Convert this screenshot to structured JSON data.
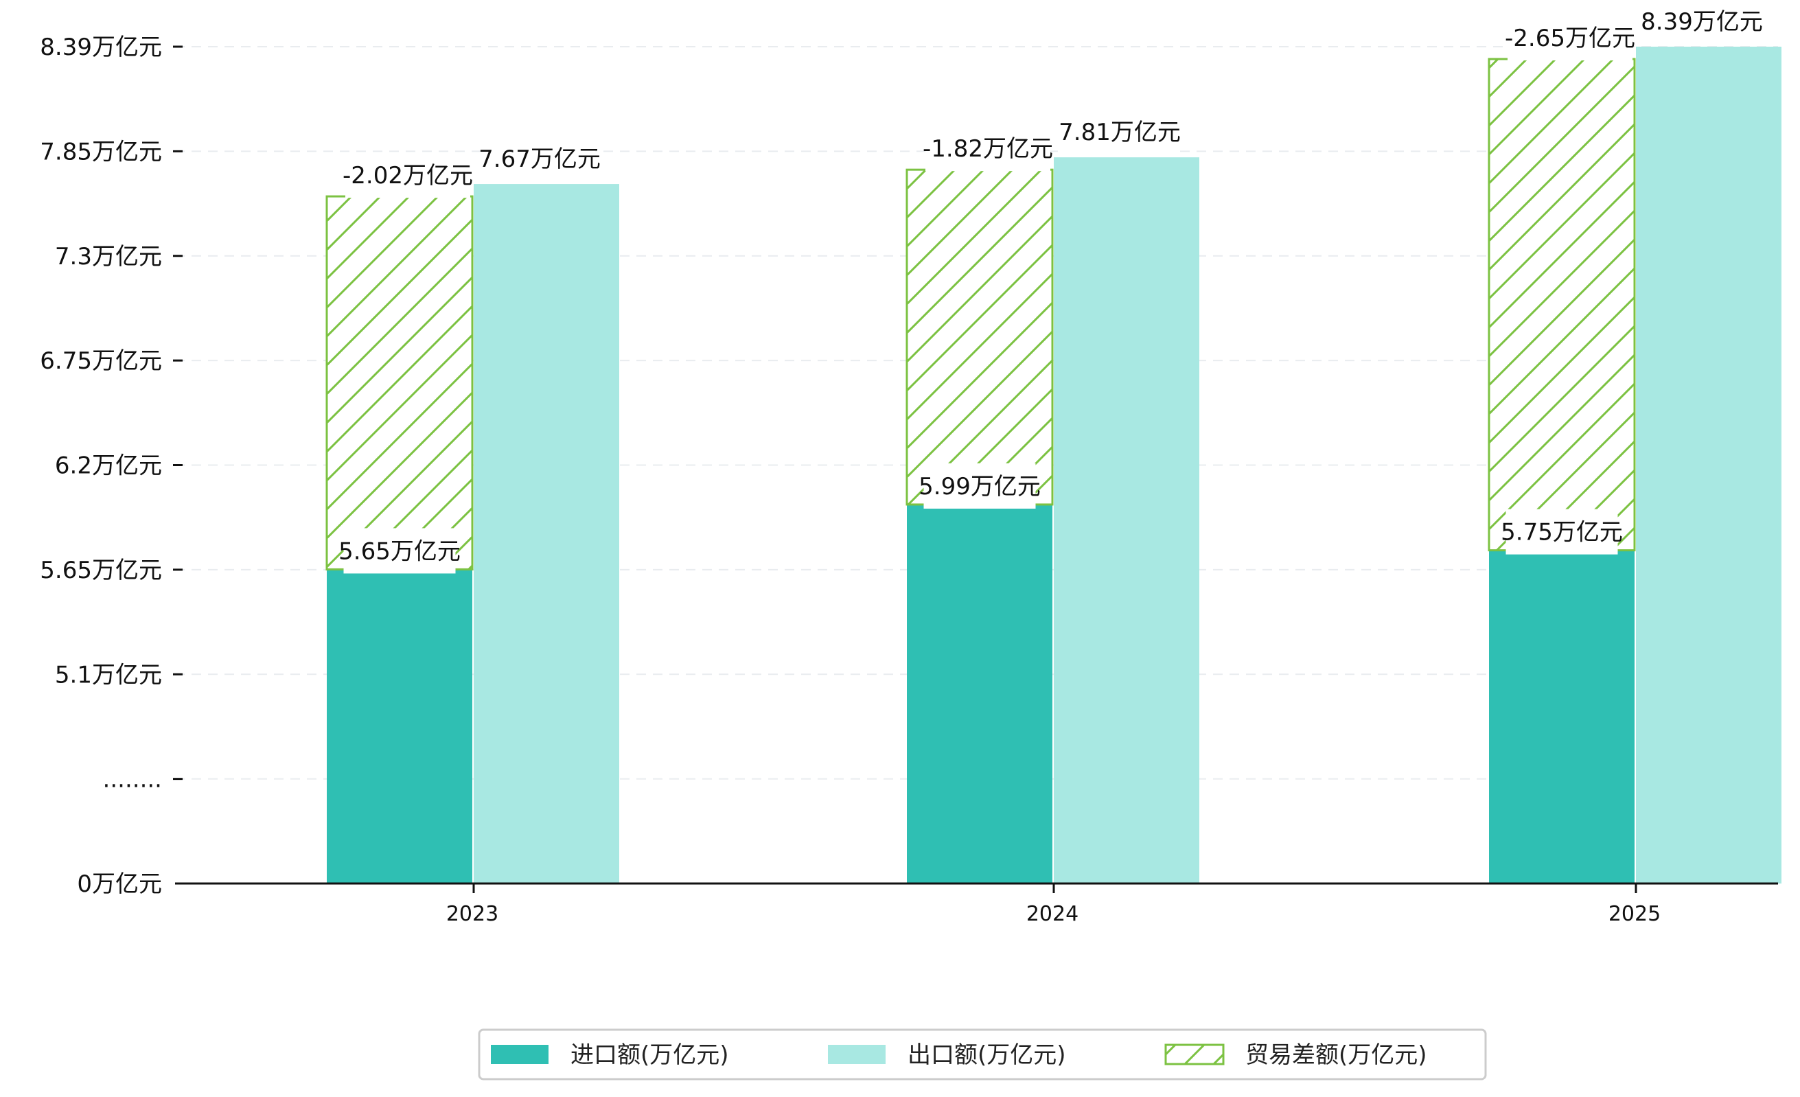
{
  "chart_data": {
    "type": "bar",
    "categories": [
      "2023",
      "2024",
      "2025"
    ],
    "series": [
      {
        "name": "进口额(万亿元)",
        "values": [
          5.65,
          5.99,
          5.75
        ],
        "labels": [
          "5.65万亿元",
          "5.99万亿元",
          "5.75万亿元"
        ],
        "color": "#2fbfb3"
      },
      {
        "name": "出口额(万亿元)",
        "values": [
          7.67,
          7.81,
          8.39
        ],
        "labels": [
          "7.67万亿元",
          "7.81万亿元",
          "8.39万亿元"
        ],
        "color": "#a8e8e2"
      },
      {
        "name": "贸易差额(万亿元)",
        "values": [
          -2.02,
          -1.82,
          -2.65
        ],
        "labels": [
          "-2.02万亿元",
          "-1.82万亿元",
          "-2.65万亿元"
        ],
        "color": "#7cc242"
      }
    ],
    "y_ticks": [
      {
        "label": "0万亿元",
        "value": 0
      },
      {
        "label": "........",
        "value": null
      },
      {
        "label": "5.1万亿元",
        "value": 5.1
      },
      {
        "label": "5.65万亿元",
        "value": 5.65
      },
      {
        "label": "6.2万亿元",
        "value": 6.2
      },
      {
        "label": "6.75万亿元",
        "value": 6.75
      },
      {
        "label": "7.3万亿元",
        "value": 7.3
      },
      {
        "label": "7.85万亿元",
        "value": 7.85
      },
      {
        "label": "8.39万亿元",
        "value": 8.39
      }
    ],
    "axis_break": true,
    "grid": true,
    "legend_position": "bottom-center",
    "xlabel": "",
    "ylabel": "",
    "title": ""
  }
}
